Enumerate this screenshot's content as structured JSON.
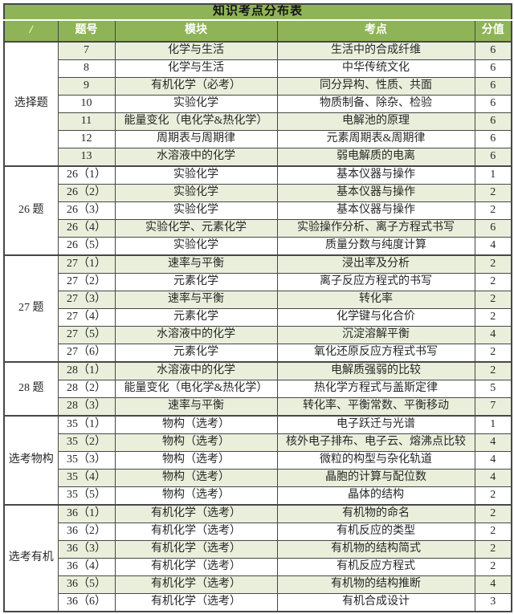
{
  "table": {
    "title": "知识考点分布表",
    "columns": [
      "/",
      "题号",
      "模块",
      "考点",
      "分值"
    ],
    "colors": {
      "header_green": "#8fb457",
      "stripe_green": "#e9efdb",
      "row_white": "#ffffff",
      "border_dark": "#474747",
      "header_text": "#ffffff",
      "title_text": "#141414",
      "body_text": "#272727"
    },
    "sections": [
      {
        "group": "选择题",
        "rows": [
          {
            "no": "7",
            "module": "化学与生活",
            "point": "生活中的合成纤维",
            "score": "6"
          },
          {
            "no": "8",
            "module": "化学与生活",
            "point": "中华传统文化",
            "score": "6"
          },
          {
            "no": "9",
            "module": "有机化学（必考）",
            "point": "同分异构、性质、共面",
            "score": "6"
          },
          {
            "no": "10",
            "module": "实验化学",
            "point": "物质制备、除杂、检验",
            "score": "6"
          },
          {
            "no": "11",
            "module": "能量变化（电化学&热化学）",
            "point": "电解池的原理",
            "score": "6"
          },
          {
            "no": "12",
            "module": "周期表与周期律",
            "point": "元素周期表&周期律",
            "score": "6"
          },
          {
            "no": "13",
            "module": "水溶液中的化学",
            "point": "弱电解质的电离",
            "score": "6"
          }
        ]
      },
      {
        "group": "26 题",
        "rows": [
          {
            "no": "26（1）",
            "module": "实验化学",
            "point": "基本仪器与操作",
            "score": "1"
          },
          {
            "no": "26（2）",
            "module": "实验化学",
            "point": "基本仪器与操作",
            "score": "2"
          },
          {
            "no": "26（3）",
            "module": "实验化学",
            "point": "基本仪器与操作",
            "score": "2"
          },
          {
            "no": "26（4）",
            "module": "实验化学、元素化学",
            "point": "实验操作分析、离子方程式书写",
            "score": "6"
          },
          {
            "no": "26（5）",
            "module": "实验化学",
            "point": "质量分数与纯度计算",
            "score": "4"
          }
        ]
      },
      {
        "group": "27 题",
        "rows": [
          {
            "no": "27（1）",
            "module": "速率与平衡",
            "point": "浸出率及分析",
            "score": "2"
          },
          {
            "no": "27（2）",
            "module": "元素化学",
            "point": "离子反应方程式的书写",
            "score": "2"
          },
          {
            "no": "27（3）",
            "module": "速率与平衡",
            "point": "转化率",
            "score": "2"
          },
          {
            "no": "27（4）",
            "module": "元素化学",
            "point": "化学键与化合价",
            "score": "2"
          },
          {
            "no": "27（5）",
            "module": "水溶液中的化学",
            "point": "沉淀溶解平衡",
            "score": "4"
          },
          {
            "no": "27（6）",
            "module": "元素化学",
            "point": "氧化还原反应方程式书写",
            "score": "2"
          }
        ]
      },
      {
        "group": "28 题",
        "rows": [
          {
            "no": "28（1）",
            "module": "水溶液中的化学",
            "point": "电解质强弱的比较",
            "score": "2"
          },
          {
            "no": "28（2）",
            "module": "能量变化（电化学&热化学）",
            "point": "热化学方程式与盖斯定律",
            "score": "5"
          },
          {
            "no": "28（3）",
            "module": "速率与平衡",
            "point": "转化率、平衡常数、平衡移动",
            "score": "7"
          }
        ]
      },
      {
        "group": "选考物构",
        "rows": [
          {
            "no": "35（1）",
            "module": "物构（选考）",
            "point": "电子跃迁与光谱",
            "score": "1"
          },
          {
            "no": "35（2）",
            "module": "物构（选考）",
            "point": "核外电子排布、电子云、熔沸点比较",
            "score": "4"
          },
          {
            "no": "35（3）",
            "module": "物构（选考）",
            "point": "微粒的构型与杂化轨道",
            "score": "4"
          },
          {
            "no": "35（4）",
            "module": "物构（选考）",
            "point": "晶胞的计算与配位数",
            "score": "4"
          },
          {
            "no": "35（5）",
            "module": "物构（选考）",
            "point": "晶体的结构",
            "score": "2"
          }
        ]
      },
      {
        "group": "选考有机",
        "rows": [
          {
            "no": "36（1）",
            "module": "有机化学（选考）",
            "point": "有机物的命名",
            "score": "2"
          },
          {
            "no": "36（2）",
            "module": "有机化学（选考）",
            "point": "有机反应的类型",
            "score": "2"
          },
          {
            "no": "36（3）",
            "module": "有机化学（选考）",
            "point": "有机物的结构简式",
            "score": "2"
          },
          {
            "no": "36（4）",
            "module": "有机化学（选考）",
            "point": "有机反应方程式",
            "score": "2"
          },
          {
            "no": "36（5）",
            "module": "有机化学（选考）",
            "point": "有机物的结构推断",
            "score": "4"
          },
          {
            "no": "36（6）",
            "module": "有机化学（选考）",
            "point": "有机合成设计",
            "score": "3"
          }
        ]
      }
    ]
  }
}
